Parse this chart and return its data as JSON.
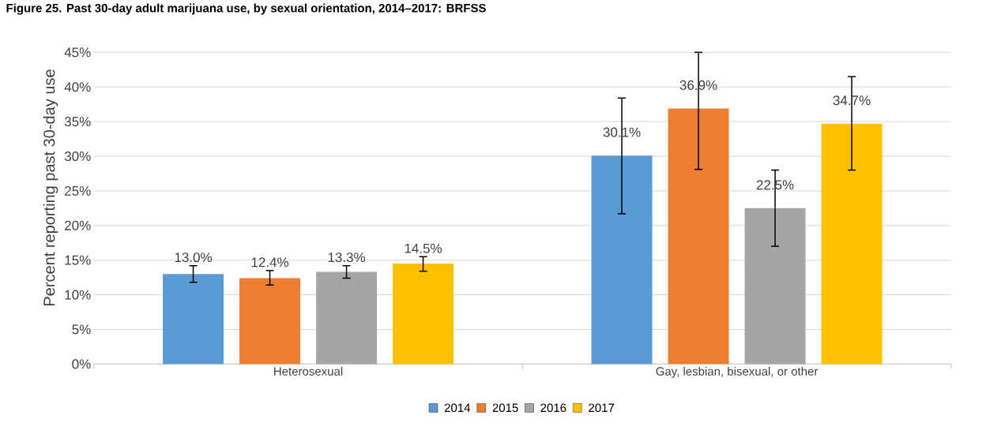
{
  "chart_data": {
    "type": "bar",
    "title": "Figure 25. Past 30-day adult marijuana use, by sexual orientation, 2014–2017: BRFSS",
    "ylabel": "Percent reporting past 30-day use",
    "categories": [
      "Heterosexual",
      "Gay, lesbian, bisexual, or other"
    ],
    "series": [
      {
        "name": "2014",
        "color": "#5b9bd5",
        "values": [
          13.0,
          30.1
        ],
        "value_labels": [
          "13.0%",
          "30.1%"
        ],
        "errors": [
          [
            11.8,
            14.2
          ],
          [
            21.7,
            38.4
          ]
        ]
      },
      {
        "name": "2015",
        "color": "#ed7d31",
        "values": [
          12.4,
          36.9
        ],
        "value_labels": [
          "12.4%",
          "36.9%"
        ],
        "errors": [
          [
            11.4,
            13.5
          ],
          [
            28.1,
            45
          ]
        ]
      },
      {
        "name": "2016",
        "color": "#a5a5a5",
        "values": [
          13.3,
          22.5
        ],
        "value_labels": [
          "13.3%",
          "22.5%"
        ],
        "errors": [
          [
            12.4,
            14.2
          ],
          [
            17.0,
            28.0
          ]
        ]
      },
      {
        "name": "2017",
        "color": "#ffc000",
        "values": [
          14.5,
          34.7
        ],
        "value_labels": [
          "14.5%",
          "34.7%"
        ],
        "errors": [
          [
            13.4,
            15.5
          ],
          [
            28.0,
            41.5
          ]
        ]
      }
    ],
    "ylim": [
      0,
      45
    ],
    "yticks": [
      {
        "value": 0,
        "label": "0%"
      },
      {
        "value": 5,
        "label": "5%"
      },
      {
        "value": 10,
        "label": "10%"
      },
      {
        "value": 15,
        "label": "15%"
      },
      {
        "value": 20,
        "label": "20%"
      },
      {
        "value": 25,
        "label": "25%"
      },
      {
        "value": 30,
        "label": "30%"
      },
      {
        "value": 35,
        "label": "35%"
      },
      {
        "value": 40,
        "label": "40%"
      },
      {
        "value": 45,
        "label": "45%"
      }
    ],
    "grid": "y",
    "legend": "bottom"
  }
}
